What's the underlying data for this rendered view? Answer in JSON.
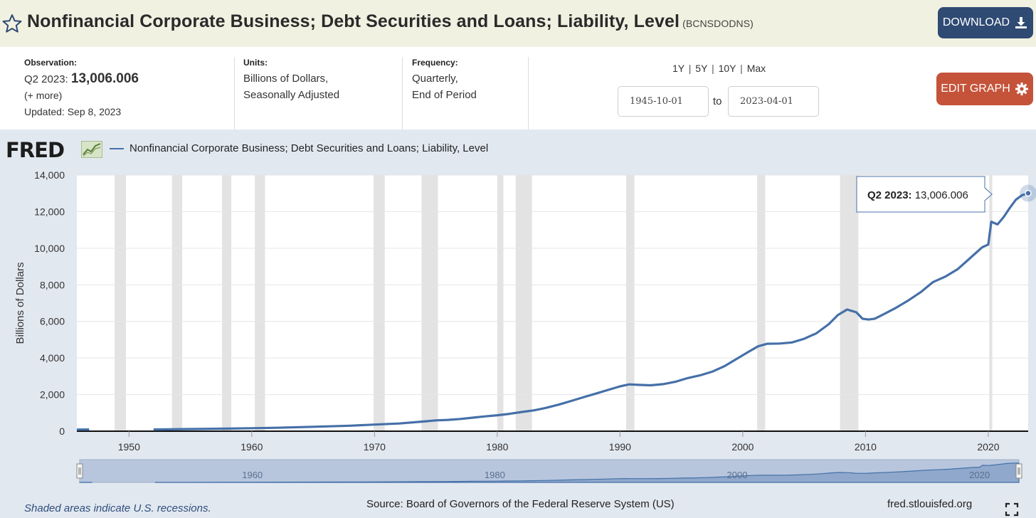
{
  "header": {
    "title": "Nonfinancial Corporate Business; Debt Securities and Loans; Liability, Level",
    "series_code": "(BCNSDODNS)",
    "download_label": "DOWNLOAD",
    "icons": {
      "favorite": "star-outline-icon",
      "download": "download-icon"
    }
  },
  "meta": {
    "observation": {
      "label": "Observation:",
      "period": "Q2 2023:",
      "value": "13,006.006",
      "more": "(+ more)",
      "updated": "Updated: Sep 8, 2023"
    },
    "units": {
      "label": "Units:",
      "line1": "Billions of Dollars,",
      "line2": "Seasonally Adjusted"
    },
    "frequency": {
      "label": "Frequency:",
      "line1": "Quarterly,",
      "line2": "End of Period"
    },
    "ranges": [
      "1Y",
      "5Y",
      "10Y",
      "Max"
    ],
    "range_sep": "|",
    "start_date": "1945-10-01",
    "to_label": "to",
    "end_date": "2023-04-01",
    "edit_label": "EDIT GRAPH",
    "icons": {
      "edit": "gear-icon"
    }
  },
  "chart_header": {
    "logo": "FRED",
    "legend_label": "Nonfinancial Corporate Business; Debt Securities and Loans; Liability, Level"
  },
  "footer": {
    "recession_note": "Shaded areas indicate U.S. recessions.",
    "source": "Source: Board of Governors of the Federal Reserve System (US)",
    "site": "fred.stlouisfed.org",
    "icons": {
      "fullscreen": "fullscreen-icon"
    }
  },
  "colors": {
    "line": "#4570a8",
    "recession": "#e3e3e3",
    "download_button": "#2f4a73",
    "edit_button": "#c5533a",
    "header_bg": "#f1f1e2",
    "chart_bg": "#e2e8f0"
  },
  "chart_data": {
    "type": "line",
    "title": "",
    "xlabel": "",
    "ylabel": "Billions of Dollars",
    "xlim": [
      1945.75,
      2023.25
    ],
    "ylim": [
      0,
      14000
    ],
    "yticks": [
      0,
      2000,
      4000,
      6000,
      8000,
      10000,
      12000,
      14000
    ],
    "ytick_labels": [
      "0",
      "2,000",
      "4,000",
      "6,000",
      "8,000",
      "10,000",
      "12,000",
      "14,000"
    ],
    "xticks": [
      1950,
      1960,
      1970,
      1980,
      1990,
      2000,
      2010,
      2020
    ],
    "xtick_labels": [
      "1950",
      "1960",
      "1970",
      "1980",
      "1990",
      "2000",
      "2010",
      "2020"
    ],
    "grid": true,
    "legend_position": "top-left",
    "series": [
      {
        "name": "Nonfinancial Corporate Business; Debt Securities and Loans; Liability, Level",
        "segments": [
          [
            [
              1945.75,
              90
            ],
            [
              1946.75,
              95
            ]
          ],
          [
            [
              1952.0,
              95
            ],
            [
              1955.0,
              115
            ],
            [
              1958.0,
              140
            ],
            [
              1960.0,
              165
            ],
            [
              1962.0,
              185
            ],
            [
              1965.0,
              240
            ],
            [
              1968.0,
              300
            ],
            [
              1970.0,
              360
            ],
            [
              1972.0,
              420
            ],
            [
              1974.0,
              530
            ],
            [
              1975.0,
              590
            ],
            [
              1976.0,
              620
            ],
            [
              1977.0,
              670
            ],
            [
              1978.0,
              740
            ],
            [
              1979.0,
              810
            ],
            [
              1980.0,
              870
            ],
            [
              1981.0,
              950
            ],
            [
              1982.0,
              1050
            ],
            [
              1983.0,
              1140
            ],
            [
              1984.0,
              1280
            ],
            [
              1985.0,
              1450
            ],
            [
              1986.0,
              1650
            ],
            [
              1987.0,
              1850
            ],
            [
              1988.0,
              2050
            ],
            [
              1989.0,
              2250
            ],
            [
              1990.0,
              2450
            ],
            [
              1990.75,
              2560
            ],
            [
              1991.5,
              2530
            ],
            [
              1992.5,
              2510
            ],
            [
              1993.5,
              2570
            ],
            [
              1994.5,
              2700
            ],
            [
              1995.5,
              2900
            ],
            [
              1996.5,
              3050
            ],
            [
              1997.5,
              3250
            ],
            [
              1998.5,
              3550
            ],
            [
              1999.5,
              3950
            ],
            [
              2000.5,
              4350
            ],
            [
              2001.25,
              4640
            ],
            [
              2002.0,
              4780
            ],
            [
              2003.0,
              4790
            ],
            [
              2004.0,
              4850
            ],
            [
              2005.0,
              5050
            ],
            [
              2006.0,
              5350
            ],
            [
              2007.0,
              5850
            ],
            [
              2007.75,
              6350
            ],
            [
              2008.5,
              6650
            ],
            [
              2009.25,
              6500
            ],
            [
              2009.75,
              6150
            ],
            [
              2010.25,
              6100
            ],
            [
              2010.75,
              6150
            ],
            [
              2011.5,
              6400
            ],
            [
              2012.5,
              6750
            ],
            [
              2013.5,
              7150
            ],
            [
              2014.5,
              7600
            ],
            [
              2015.5,
              8150
            ],
            [
              2016.5,
              8450
            ],
            [
              2017.5,
              8850
            ],
            [
              2018.5,
              9450
            ],
            [
              2019.5,
              10050
            ],
            [
              2020.0,
              10200
            ],
            [
              2020.25,
              11450
            ],
            [
              2020.75,
              11300
            ],
            [
              2021.25,
              11700
            ],
            [
              2021.75,
              12200
            ],
            [
              2022.25,
              12650
            ],
            [
              2022.75,
              12900
            ],
            [
              2023.25,
              13006.006
            ]
          ]
        ]
      }
    ],
    "recessions": [
      [
        1948.83,
        1949.75
      ],
      [
        1953.5,
        1954.33
      ],
      [
        1957.58,
        1958.33
      ],
      [
        1960.25,
        1961.08
      ],
      [
        1969.92,
        1970.83
      ],
      [
        1973.83,
        1975.17
      ],
      [
        1980.0,
        1980.5
      ],
      [
        1981.5,
        1982.83
      ],
      [
        1990.5,
        1991.17
      ],
      [
        2001.17,
        2001.83
      ],
      [
        2007.92,
        2009.42
      ],
      [
        2020.08,
        2020.33
      ]
    ],
    "tooltip": {
      "label": "Q2 2023:",
      "value": "13,006.006"
    },
    "navigator_labels": [
      "1960",
      "1980",
      "2000",
      "2020"
    ]
  }
}
